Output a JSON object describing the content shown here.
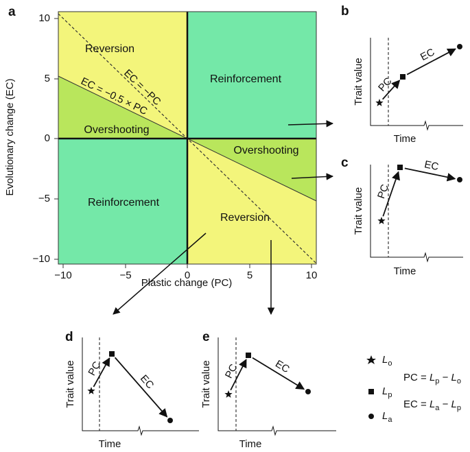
{
  "panel_a": {
    "label": "a",
    "x_axis_title": "Plastic change (PC)",
    "y_axis_title": "Evolutionary change (EC)",
    "x_tick_labels": [
      "−10",
      "−5",
      "0",
      "5",
      "10"
    ],
    "y_tick_labels": [
      "10",
      "5",
      "0",
      "−5",
      "−10"
    ],
    "regions": [
      "Reversion",
      "Reinforcement",
      "Overshooting",
      "Overshooting",
      "Reinforcement",
      "Reversion"
    ],
    "lines": [
      "EC = −PC",
      "EC = −0.5 × PC"
    ]
  },
  "panels": [
    {
      "label": "b",
      "y_axis_title": "Trait value",
      "x_axis_title": "Time",
      "segments": [
        "PC",
        "EC"
      ]
    },
    {
      "label": "c",
      "y_axis_title": "Trait value",
      "x_axis_title": "Time",
      "segments": [
        "PC",
        "EC"
      ]
    },
    {
      "label": "d",
      "y_axis_title": "Trait value",
      "x_axis_title": "Time",
      "segments": [
        "PC",
        "EC"
      ]
    },
    {
      "label": "e",
      "y_axis_title": "Trait value",
      "x_axis_title": "Time",
      "segments": [
        "PC",
        "EC"
      ]
    }
  ],
  "legend": {
    "symbols": [
      {
        "letter": "L",
        "sub": "o"
      },
      {
        "letter": "L",
        "sub": "p"
      },
      {
        "letter": "L",
        "sub": "a"
      }
    ],
    "equations": [
      {
        "lhs": "PC = ",
        "a": "L",
        "a_sub": "p",
        "op": " − ",
        "b": "L",
        "b_sub": "o"
      },
      {
        "lhs": "EC = ",
        "a": "L",
        "a_sub": "a",
        "op": " − ",
        "b": "L",
        "b_sub": "p"
      }
    ]
  }
}
